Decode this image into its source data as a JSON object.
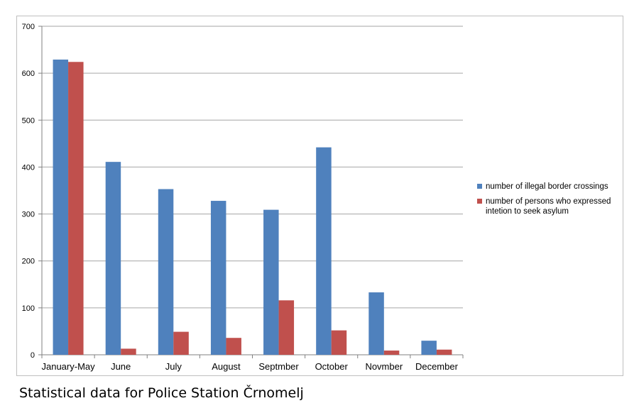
{
  "caption": "Statistical data for Police Station Črnomelj",
  "chart_data": {
    "type": "bar",
    "categories": [
      "January-May",
      "June",
      "July",
      "August",
      "Septmber",
      "October",
      "Novmber",
      "December"
    ],
    "series": [
      {
        "name": "number of illegal border crossings",
        "color": "#4f81bd",
        "values": [
          629,
          411,
          353,
          328,
          309,
          442,
          133,
          30
        ]
      },
      {
        "name_lines": [
          "number of persons who expressed",
          "intetion to seek asylum"
        ],
        "color": "#c0504d",
        "values": [
          624,
          13,
          49,
          36,
          116,
          52,
          9,
          11
        ]
      }
    ],
    "ylim": [
      0,
      700
    ],
    "yticks": [
      0,
      100,
      200,
      300,
      400,
      500,
      600,
      700
    ],
    "grid": true,
    "legend_position": "right"
  }
}
